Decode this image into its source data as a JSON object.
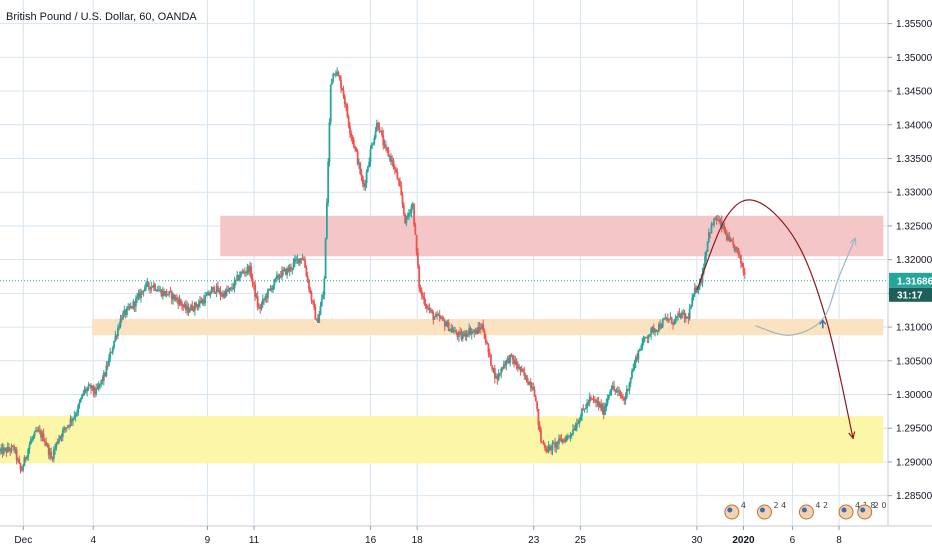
{
  "chart_data": {
    "type": "candlestick",
    "title": "British Pound / U.S. Dollar, 60, OANDA",
    "ylim": [
      1.2805,
      1.3585
    ],
    "yticks": [
      "1.28500",
      "1.29000",
      "1.29500",
      "1.30000",
      "1.30500",
      "1.31000",
      "1.31500",
      "1.32000",
      "1.32500",
      "1.33000",
      "1.33500",
      "1.34000",
      "1.34500",
      "1.35000",
      "1.35500"
    ],
    "xticks": [
      {
        "label": "Dec",
        "pos": 0.1
      },
      {
        "label": "4",
        "pos": 3.1
      },
      {
        "label": "9",
        "pos": 8
      },
      {
        "label": "11",
        "pos": 10
      },
      {
        "label": "16",
        "pos": 15
      },
      {
        "label": "18",
        "pos": 17
      },
      {
        "label": "23",
        "pos": 22
      },
      {
        "label": "25",
        "pos": 24
      },
      {
        "label": "30",
        "pos": 29
      },
      {
        "label": "2020",
        "pos": 31,
        "bold": true
      },
      {
        "label": "6",
        "pos": 33.1
      },
      {
        "label": "8",
        "pos": 35.1
      }
    ],
    "x_range_days": [
      -0.9,
      37.2
    ],
    "last_price": "1.31686",
    "countdown": "31:17",
    "last_price_value": 1.31686,
    "path": [
      [
        -0.9,
        1.2915
      ],
      [
        -0.3,
        1.292
      ],
      [
        0.0,
        1.2885
      ],
      [
        0.4,
        1.293
      ],
      [
        0.7,
        1.2945
      ],
      [
        1.0,
        1.2935
      ],
      [
        1.3,
        1.2905
      ],
      [
        1.6,
        1.2935
      ],
      [
        2.0,
        1.2955
      ],
      [
        2.4,
        1.2975
      ],
      [
        2.7,
        1.3005
      ],
      [
        3.0,
        1.301
      ],
      [
        3.2,
        1.3002
      ],
      [
        3.6,
        1.303
      ],
      [
        4.0,
        1.308
      ],
      [
        4.3,
        1.3115
      ],
      [
        4.7,
        1.3128
      ],
      [
        5.0,
        1.3142
      ],
      [
        5.3,
        1.316
      ],
      [
        5.7,
        1.3162
      ],
      [
        6.0,
        1.3152
      ],
      [
        6.4,
        1.3148
      ],
      [
        6.8,
        1.3138
      ],
      [
        7.1,
        1.3125
      ],
      [
        7.5,
        1.3132
      ],
      [
        7.9,
        1.3142
      ],
      [
        8.3,
        1.3158
      ],
      [
        8.6,
        1.3148
      ],
      [
        9.0,
        1.3155
      ],
      [
        9.4,
        1.3178
      ],
      [
        9.8,
        1.3188
      ],
      [
        10.2,
        1.3125
      ],
      [
        10.5,
        1.3145
      ],
      [
        10.8,
        1.3162
      ],
      [
        11.1,
        1.3178
      ],
      [
        11.5,
        1.3185
      ],
      [
        11.8,
        1.3198
      ],
      [
        12.1,
        1.3205
      ],
      [
        12.4,
        1.3152
      ],
      [
        12.7,
        1.3105
      ],
      [
        13.0,
        1.3155
      ],
      [
        13.3,
        1.347
      ],
      [
        13.5,
        1.3482
      ],
      [
        13.8,
        1.3452
      ],
      [
        14.1,
        1.3395
      ],
      [
        14.4,
        1.3355
      ],
      [
        14.7,
        1.3305
      ],
      [
        15.0,
        1.3362
      ],
      [
        15.3,
        1.3405
      ],
      [
        15.6,
        1.3365
      ],
      [
        15.9,
        1.3348
      ],
      [
        16.2,
        1.3315
      ],
      [
        16.5,
        1.3255
      ],
      [
        16.8,
        1.3285
      ],
      [
        17.1,
        1.3155
      ],
      [
        17.4,
        1.3132
      ],
      [
        17.7,
        1.3115
      ],
      [
        18.0,
        1.3112
      ],
      [
        18.3,
        1.3102
      ],
      [
        18.6,
        1.3092
      ],
      [
        18.9,
        1.3085
      ],
      [
        19.2,
        1.3095
      ],
      [
        19.5,
        1.3092
      ],
      [
        19.8,
        1.3102
      ],
      [
        20.1,
        1.3055
      ],
      [
        20.4,
        1.3022
      ],
      [
        20.7,
        1.3045
      ],
      [
        21.0,
        1.3055
      ],
      [
        21.3,
        1.3042
      ],
      [
        21.7,
        1.3022
      ],
      [
        22.0,
        1.3012
      ],
      [
        22.3,
        1.2932
      ],
      [
        22.6,
        1.2918
      ],
      [
        22.9,
        1.2925
      ],
      [
        23.2,
        1.2932
      ],
      [
        23.5,
        1.2938
      ],
      [
        23.8,
        1.2955
      ],
      [
        24.1,
        1.2975
      ],
      [
        24.4,
        1.2992
      ],
      [
        24.7,
        1.2988
      ],
      [
        25.0,
        1.2975
      ],
      [
        25.3,
        1.3012
      ],
      [
        25.6,
        1.3002
      ],
      [
        25.9,
        1.2992
      ],
      [
        26.2,
        1.3032
      ],
      [
        26.5,
        1.3065
      ],
      [
        26.8,
        1.3085
      ],
      [
        27.1,
        1.3095
      ],
      [
        27.4,
        1.3102
      ],
      [
        27.7,
        1.3112
      ],
      [
        28.0,
        1.3108
      ],
      [
        28.3,
        1.3118
      ],
      [
        28.6,
        1.3112
      ],
      [
        28.9,
        1.3152
      ],
      [
        29.2,
        1.3172
      ],
      [
        29.5,
        1.3238
      ],
      [
        29.8,
        1.3262
      ],
      [
        30.1,
        1.3248
      ],
      [
        30.4,
        1.3225
      ],
      [
        30.7,
        1.3215
      ],
      [
        30.9,
        1.3195
      ],
      [
        31.1,
        1.3172
      ]
    ],
    "zones": [
      {
        "name": "resistance-zone",
        "from_day": 8.55,
        "to_day": 37.0,
        "y_low": 1.3205,
        "y_high": 1.3265,
        "fill": "#f4c6c8"
      },
      {
        "name": "support-zone",
        "from_day": 3.05,
        "to_day": 37.0,
        "y_low": 1.3088,
        "y_high": 1.3112,
        "fill": "#fbe3c1"
      },
      {
        "name": "demand-zone",
        "from_day": -0.9,
        "to_day": 37.0,
        "y_low": 1.2898,
        "y_high": 1.2968,
        "fill": "#fcf7a8"
      }
    ],
    "drawings": [
      {
        "name": "dome-arc",
        "color": "#8b1a1a",
        "points": [
          [
            29.0,
            1.3155
          ],
          [
            30.3,
            1.3265
          ],
          [
            31.6,
            1.3286
          ],
          [
            33.3,
            1.3225
          ],
          [
            34.6,
            1.3105
          ],
          [
            35.7,
            1.2935
          ]
        ]
      },
      {
        "name": "projection-curve",
        "color": "#9fb6c6",
        "points": [
          [
            31.5,
            1.3102
          ],
          [
            33.0,
            1.3088
          ],
          [
            34.4,
            1.3112
          ],
          [
            35.1,
            1.3175
          ],
          [
            35.8,
            1.3232
          ]
        ]
      }
    ],
    "colors": {
      "up": "#26a69a",
      "down": "#ef5350",
      "grid": "#d6e4f0",
      "price_tag": "#26a69a",
      "countdown_bg": "#1e5f5a"
    },
    "events": [
      "4",
      "2 4",
      "4 2",
      "4 1 8",
      "2 0"
    ]
  }
}
